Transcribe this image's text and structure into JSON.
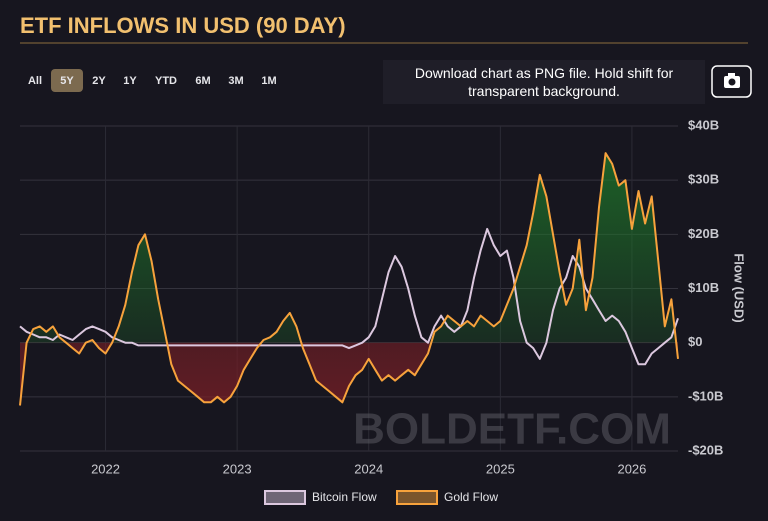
{
  "header": {
    "title": "ETF INFLOWS IN USD (90 DAY)"
  },
  "range_buttons": {
    "labels": [
      "All",
      "5Y",
      "2Y",
      "1Y",
      "YTD",
      "6M",
      "3M",
      "1M"
    ],
    "selected": 1
  },
  "tooltip": "Download chart as PNG file. Hold shift for transparent background.",
  "watermark": "BOLDETF.COM",
  "chart_data": {
    "type": "line",
    "y_label": "Flow (USD)",
    "xlim": [
      2021.35,
      2026.35
    ],
    "xticks": [
      2022,
      2023,
      2024,
      2025,
      2026
    ],
    "ylim": [
      -20,
      40
    ],
    "yticks": [
      {
        "value": 40,
        "label": "$40B"
      },
      {
        "value": 30,
        "label": "$30B"
      },
      {
        "value": 20,
        "label": "$20B"
      },
      {
        "value": 10,
        "label": "$10B"
      },
      {
        "value": 0,
        "label": "$0"
      },
      {
        "value": -10,
        "label": "-$10B"
      },
      {
        "value": -20,
        "label": "-$20B"
      }
    ],
    "grid": true,
    "x": [
      2021.35,
      2021.4,
      2021.45,
      2021.5,
      2021.55,
      2021.6,
      2021.65,
      2021.7,
      2021.75,
      2021.8,
      2021.85,
      2021.9,
      2021.95,
      2022,
      2022.05,
      2022.1,
      2022.15,
      2022.2,
      2022.25,
      2022.3,
      2022.35,
      2022.4,
      2022.45,
      2022.5,
      2022.55,
      2022.6,
      2022.65,
      2022.7,
      2022.75,
      2022.8,
      2022.85,
      2022.9,
      2022.95,
      2023,
      2023.05,
      2023.1,
      2023.15,
      2023.2,
      2023.25,
      2023.3,
      2023.35,
      2023.4,
      2023.45,
      2023.5,
      2023.55,
      2023.6,
      2023.65,
      2023.7,
      2023.75,
      2023.8,
      2023.85,
      2023.9,
      2023.95,
      2024,
      2024.05,
      2024.1,
      2024.15,
      2024.2,
      2024.25,
      2024.3,
      2024.35,
      2024.4,
      2024.45,
      2024.5,
      2024.55,
      2024.6,
      2024.65,
      2024.7,
      2024.75,
      2024.8,
      2024.85,
      2024.9,
      2024.95,
      2025,
      2025.05,
      2025.1,
      2025.15,
      2025.2,
      2025.25,
      2025.3,
      2025.35,
      2025.4,
      2025.45,
      2025.5,
      2025.55,
      2025.6,
      2025.65,
      2025.7,
      2025.75,
      2025.8,
      2025.85,
      2025.9,
      2025.95,
      2026,
      2026.05,
      2026.1,
      2026.15,
      2026.2,
      2026.25,
      2026.3,
      2026.35
    ],
    "series": [
      {
        "name": "Bitcoin Flow",
        "color": "#dcc8df",
        "values": [
          3,
          2,
          1.5,
          1,
          1,
          0.5,
          1.5,
          1,
          0.5,
          1.5,
          2.5,
          3,
          2.5,
          2,
          1,
          0.5,
          0,
          0,
          -0.5,
          -0.5,
          -0.5,
          -0.5,
          -0.5,
          -0.5,
          -0.5,
          -0.5,
          -0.5,
          -0.5,
          -0.5,
          -0.5,
          -0.5,
          -0.5,
          -0.5,
          -0.5,
          -0.5,
          -0.5,
          -0.5,
          -0.5,
          -0.5,
          -0.5,
          -0.5,
          -0.5,
          -0.5,
          -0.5,
          -0.5,
          -0.5,
          -0.5,
          -0.5,
          -0.5,
          -0.5,
          -1,
          -0.5,
          0,
          1,
          3,
          8,
          13,
          16,
          14,
          10,
          5,
          1,
          0,
          3,
          5,
          3,
          2,
          3,
          6,
          12,
          17,
          21,
          18,
          16,
          17,
          12,
          4,
          0,
          -1,
          -3,
          0,
          6,
          10,
          12,
          16,
          14,
          10,
          8,
          6,
          4,
          5,
          4,
          2,
          -1,
          -4,
          -4,
          -2,
          -1,
          0,
          1,
          4.5
        ]
      },
      {
        "name": "Gold Flow",
        "color": "#f7a23c",
        "values": [
          -11.6,
          0,
          2.5,
          3,
          2,
          3,
          1,
          0,
          -1,
          -2,
          0,
          0.5,
          -1,
          -2,
          0,
          3,
          7,
          13,
          18,
          20,
          15,
          8,
          2,
          -4,
          -7,
          -8,
          -9,
          -10,
          -11,
          -11,
          -10,
          -11,
          -10,
          -8,
          -5,
          -3,
          -1,
          0.5,
          1,
          2,
          4,
          5.5,
          3,
          -1,
          -4,
          -7,
          -8,
          -9,
          -10,
          -11,
          -8,
          -6,
          -5,
          -3,
          -5,
          -7,
          -6,
          -7,
          -6,
          -5,
          -6,
          -4,
          -2,
          2,
          3,
          5,
          4,
          3,
          4,
          3,
          5,
          4,
          3,
          4,
          7,
          10,
          14,
          18,
          24,
          31,
          27,
          20,
          13,
          7,
          10,
          19,
          6,
          12,
          25,
          35,
          33,
          29,
          30,
          21,
          28,
          22,
          27,
          15,
          3,
          8,
          -3
        ]
      }
    ]
  }
}
